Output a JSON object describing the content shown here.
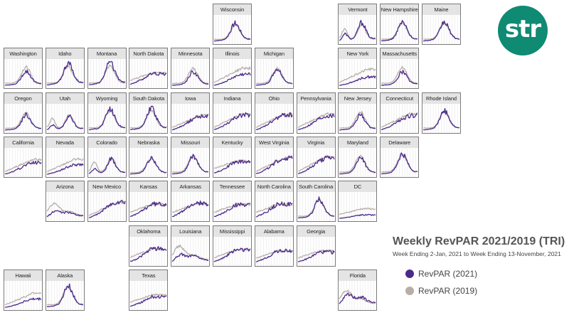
{
  "logo_text": "str",
  "chart_title": "Weekly RevPAR 2021/2019 (TRI)",
  "chart_subtitle": "Week Ending 2-Jan, 2021 to Week Ending 13-November, 2021",
  "legend": [
    {
      "label": "RevPAR (2021)",
      "color": "#4b2a8a"
    },
    {
      "label": "RevPAR (2019)",
      "color": "#b7aea8"
    }
  ],
  "colors": {
    "series_2021": "#4b2a8a",
    "series_2019": "#b7aea8",
    "grid": "#e2e2e2",
    "header": "#e4e4e4"
  },
  "chart_data": {
    "type": "line",
    "x_range": [
      "Week Ending 2-Jan, 2021",
      "Week Ending 13-November, 2021"
    ],
    "series_names": [
      "RevPAR (2021)",
      "RevPAR (2019)"
    ],
    "states": [
      {
        "name": "Wisconsin",
        "row": 0,
        "col": 5,
        "peak": 0.72,
        "ratio": 1.1,
        "shape": "summer"
      },
      {
        "name": "Vermont",
        "row": 0,
        "col": 8,
        "peak": 0.8,
        "ratio": 1.15,
        "shape": "bimodal"
      },
      {
        "name": "New Hampshire",
        "row": 0,
        "col": 9,
        "peak": 0.8,
        "ratio": 1.05,
        "shape": "summer"
      },
      {
        "name": "Maine",
        "row": 0,
        "col": 10,
        "peak": 0.8,
        "ratio": 1.05,
        "shape": "summer"
      },
      {
        "name": "Washington",
        "row": 1,
        "col": 0,
        "peak": 0.8,
        "ratio": 0.8,
        "shape": "summer"
      },
      {
        "name": "Idaho",
        "row": 1,
        "col": 1,
        "peak": 0.85,
        "ratio": 1.15,
        "shape": "summer"
      },
      {
        "name": "Montana",
        "row": 1,
        "col": 2,
        "peak": 0.85,
        "ratio": 1.2,
        "shape": "summer"
      },
      {
        "name": "North Dakota",
        "row": 1,
        "col": 3,
        "peak": 0.7,
        "ratio": 0.95,
        "shape": "flat"
      },
      {
        "name": "Minnesota",
        "row": 1,
        "col": 4,
        "peak": 0.75,
        "ratio": 0.8,
        "shape": "summer"
      },
      {
        "name": "Illinois",
        "row": 1,
        "col": 5,
        "peak": 0.8,
        "ratio": 0.65,
        "shape": "rise"
      },
      {
        "name": "Michigan",
        "row": 1,
        "col": 6,
        "peak": 0.75,
        "ratio": 0.95,
        "shape": "summer"
      },
      {
        "name": "New York",
        "row": 1,
        "col": 8,
        "peak": 0.75,
        "ratio": 0.55,
        "shape": "rise"
      },
      {
        "name": "Massachusetts",
        "row": 1,
        "col": 9,
        "peak": 0.8,
        "ratio": 0.75,
        "shape": "summer"
      },
      {
        "name": "Oregon",
        "row": 2,
        "col": 0,
        "peak": 0.75,
        "ratio": 0.9,
        "shape": "summer"
      },
      {
        "name": "Utah",
        "row": 2,
        "col": 1,
        "peak": 0.75,
        "ratio": 0.9,
        "shape": "bimodal"
      },
      {
        "name": "Wyoming",
        "row": 2,
        "col": 2,
        "peak": 0.85,
        "ratio": 1.1,
        "shape": "summer"
      },
      {
        "name": "South Dakota",
        "row": 2,
        "col": 3,
        "peak": 0.85,
        "ratio": 1.15,
        "shape": "summer"
      },
      {
        "name": "Iowa",
        "row": 2,
        "col": 4,
        "peak": 0.7,
        "ratio": 0.95,
        "shape": "rise"
      },
      {
        "name": "Indiana",
        "row": 2,
        "col": 5,
        "peak": 0.75,
        "ratio": 0.95,
        "shape": "rise"
      },
      {
        "name": "Ohio",
        "row": 2,
        "col": 6,
        "peak": 0.75,
        "ratio": 0.95,
        "shape": "rise"
      },
      {
        "name": "Pennsylvania",
        "row": 2,
        "col": 7,
        "peak": 0.75,
        "ratio": 0.9,
        "shape": "rise"
      },
      {
        "name": "New Jersey",
        "row": 2,
        "col": 8,
        "peak": 0.8,
        "ratio": 0.85,
        "shape": "summer"
      },
      {
        "name": "Connecticut",
        "row": 2,
        "col": 9,
        "peak": 0.75,
        "ratio": 0.9,
        "shape": "rise"
      },
      {
        "name": "Rhode Island",
        "row": 2,
        "col": 10,
        "peak": 0.8,
        "ratio": 1.05,
        "shape": "summer"
      },
      {
        "name": "California",
        "row": 3,
        "col": 0,
        "peak": 0.7,
        "ratio": 0.8,
        "shape": "rise"
      },
      {
        "name": "Nevada",
        "row": 3,
        "col": 1,
        "peak": 0.7,
        "ratio": 0.65,
        "shape": "rise"
      },
      {
        "name": "Colorado",
        "row": 3,
        "col": 2,
        "peak": 0.8,
        "ratio": 0.95,
        "shape": "bimodal"
      },
      {
        "name": "Nebraska",
        "row": 3,
        "col": 3,
        "peak": 0.7,
        "ratio": 1.0,
        "shape": "summer"
      },
      {
        "name": "Missouri",
        "row": 3,
        "col": 4,
        "peak": 0.8,
        "ratio": 1.0,
        "shape": "summer"
      },
      {
        "name": "Kentucky",
        "row": 3,
        "col": 5,
        "peak": 0.75,
        "ratio": 0.95,
        "shape": "flat"
      },
      {
        "name": "West Virginia",
        "row": 3,
        "col": 6,
        "peak": 0.75,
        "ratio": 1.0,
        "shape": "rise"
      },
      {
        "name": "Virginia",
        "row": 3,
        "col": 7,
        "peak": 0.8,
        "ratio": 0.95,
        "shape": "rise"
      },
      {
        "name": "Maryland",
        "row": 3,
        "col": 8,
        "peak": 0.8,
        "ratio": 0.9,
        "shape": "summer"
      },
      {
        "name": "Delaware",
        "row": 3,
        "col": 9,
        "peak": 0.85,
        "ratio": 1.05,
        "shape": "summer"
      },
      {
        "name": "Arizona",
        "row": 4,
        "col": 1,
        "peak": 0.65,
        "ratio": 0.85,
        "shape": "winter"
      },
      {
        "name": "New Mexico",
        "row": 4,
        "col": 2,
        "peak": 0.75,
        "ratio": 1.05,
        "shape": "rise"
      },
      {
        "name": "Kansas",
        "row": 4,
        "col": 3,
        "peak": 0.8,
        "ratio": 1.0,
        "shape": "flat"
      },
      {
        "name": "Arkansas",
        "row": 4,
        "col": 4,
        "peak": 0.8,
        "ratio": 1.05,
        "shape": "flat"
      },
      {
        "name": "Tennessee",
        "row": 4,
        "col": 5,
        "peak": 0.8,
        "ratio": 0.95,
        "shape": "flat"
      },
      {
        "name": "North Carolina",
        "row": 4,
        "col": 6,
        "peak": 0.8,
        "ratio": 1.0,
        "shape": "flat"
      },
      {
        "name": "South Carolina",
        "row": 4,
        "col": 7,
        "peak": 0.8,
        "ratio": 1.05,
        "shape": "summer"
      },
      {
        "name": "DC",
        "row": 4,
        "col": 8,
        "peak": 0.55,
        "ratio": 0.4,
        "shape": "flat"
      },
      {
        "name": "Oklahoma",
        "row": 5,
        "col": 3,
        "peak": 0.8,
        "ratio": 1.0,
        "shape": "flat"
      },
      {
        "name": "Louisiana",
        "row": 5,
        "col": 4,
        "peak": 0.75,
        "ratio": 0.85,
        "shape": "winter"
      },
      {
        "name": "Mississippi",
        "row": 5,
        "col": 5,
        "peak": 0.75,
        "ratio": 1.0,
        "shape": "flat"
      },
      {
        "name": "Alabama",
        "row": 5,
        "col": 6,
        "peak": 0.7,
        "ratio": 1.0,
        "shape": "flat"
      },
      {
        "name": "Georgia",
        "row": 5,
        "col": 7,
        "peak": 0.7,
        "ratio": 0.9,
        "shape": "flat"
      },
      {
        "name": "Hawaii",
        "row": 6,
        "col": 0,
        "peak": 0.65,
        "ratio": 0.6,
        "shape": "rise"
      },
      {
        "name": "Alaska",
        "row": 6,
        "col": 1,
        "peak": 0.9,
        "ratio": 1.05,
        "shape": "summer"
      },
      {
        "name": "Texas",
        "row": 6,
        "col": 3,
        "peak": 0.7,
        "ratio": 0.85,
        "shape": "flat"
      },
      {
        "name": "Florida",
        "row": 6,
        "col": 8,
        "peak": 0.75,
        "ratio": 1.2,
        "shape": "winter"
      }
    ]
  }
}
